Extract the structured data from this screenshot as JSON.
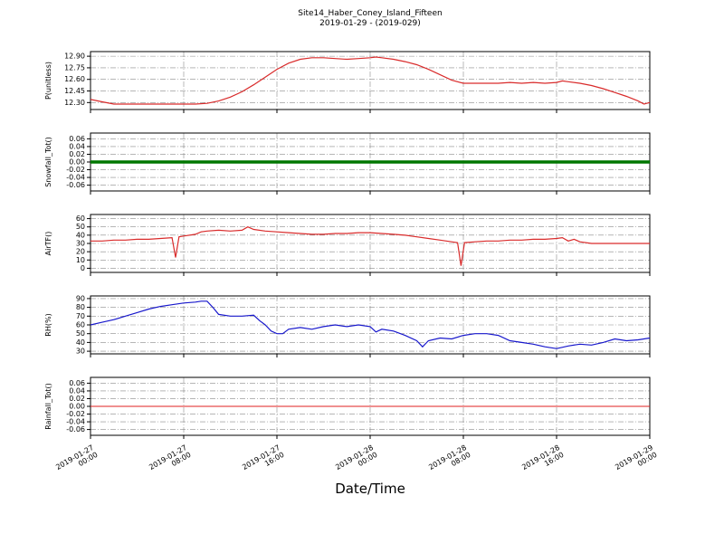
{
  "chart_data": {
    "type": "line",
    "title": "Site14_Haber_Coney_Island_Fifteen",
    "subtitle": "2019-01-29 - (2019-029)",
    "xlabel": "Date/Time",
    "x_unit": "hours since 2019-01-27 00:00",
    "xlim": [
      0,
      48
    ],
    "grid": true,
    "grid_style": "dash-dot",
    "legend": "none",
    "xticks": [
      0,
      8,
      16,
      24,
      32,
      40,
      48
    ],
    "xtick_labels": [
      [
        "2019-01-27",
        "00:00"
      ],
      [
        "2019-01-27",
        "08:00"
      ],
      [
        "2019-01-27",
        "16:00"
      ],
      [
        "2019-01-28",
        "00:00"
      ],
      [
        "2019-01-28",
        "08:00"
      ],
      [
        "2019-01-28",
        "16:00"
      ],
      [
        "2019-01-29",
        "00:00"
      ]
    ],
    "panels": [
      {
        "ylabel": "P(unitless)",
        "color": "#d92b2b",
        "line_width": 1.2,
        "ylim": [
          12.21,
          12.96
        ],
        "yticks": [
          12.3,
          12.45,
          12.6,
          12.75,
          12.9
        ],
        "ytick_labels": [
          "12.30",
          "12.45",
          "12.60",
          "12.75",
          "12.90"
        ],
        "x": [
          0,
          1,
          2,
          3,
          6,
          9,
          10,
          11,
          12,
          13,
          14,
          15,
          16,
          17,
          18,
          19,
          20,
          21,
          22,
          23,
          24,
          24.5,
          25,
          26,
          27,
          28,
          29,
          30,
          31,
          32,
          33,
          34,
          35,
          36,
          37,
          38,
          39,
          40,
          40.5,
          41,
          42,
          43,
          44,
          45,
          46,
          47,
          47.5,
          48
        ],
        "y": [
          12.34,
          12.31,
          12.28,
          12.28,
          12.28,
          12.28,
          12.29,
          12.32,
          12.37,
          12.44,
          12.53,
          12.63,
          12.73,
          12.81,
          12.86,
          12.88,
          12.88,
          12.87,
          12.86,
          12.87,
          12.88,
          12.89,
          12.88,
          12.86,
          12.83,
          12.79,
          12.73,
          12.66,
          12.59,
          12.55,
          12.55,
          12.55,
          12.55,
          12.56,
          12.55,
          12.56,
          12.55,
          12.56,
          12.58,
          12.57,
          12.55,
          12.52,
          12.48,
          12.43,
          12.38,
          12.32,
          12.28,
          12.3
        ]
      },
      {
        "ylabel": "Snowfall_Tot()",
        "color": "#007700",
        "line_width": 3.5,
        "ylim": [
          -0.075,
          0.075
        ],
        "yticks": [
          -0.06,
          -0.04,
          -0.02,
          0.0,
          0.02,
          0.04,
          0.06
        ],
        "ytick_labels": [
          "-0.06",
          "-0.04",
          "-0.02",
          "0.00",
          "0.02",
          "0.04",
          "0.06"
        ],
        "x": [
          0,
          48
        ],
        "y": [
          0.0,
          0.0
        ]
      },
      {
        "ylabel": "AirTF()",
        "color": "#d92b2b",
        "line_width": 1.2,
        "ylim": [
          -5,
          65
        ],
        "yticks": [
          0,
          10,
          20,
          30,
          40,
          50,
          60
        ],
        "ytick_labels": [
          "0",
          "10",
          "20",
          "30",
          "40",
          "50",
          "60"
        ],
        "x": [
          0,
          1,
          2,
          3,
          4,
          5,
          6,
          7,
          7.3,
          7.6,
          8,
          9,
          9.5,
          10,
          11,
          12,
          13,
          13.5,
          14,
          15,
          16,
          17,
          18,
          19,
          20,
          21,
          22,
          23,
          24,
          25,
          26,
          27,
          28,
          29,
          30,
          31,
          31.5,
          31.8,
          32.1,
          33,
          34,
          35,
          36,
          37,
          38,
          39,
          40,
          40.5,
          41,
          41.5,
          42,
          43,
          44,
          45,
          46,
          47,
          48
        ],
        "y": [
          33,
          33,
          34,
          34,
          35,
          35,
          36,
          37,
          13,
          38,
          39,
          41,
          44,
          45,
          46,
          45,
          46,
          50,
          47,
          45,
          44,
          43,
          42,
          41,
          41,
          42,
          42,
          43,
          43,
          42,
          41,
          40,
          38,
          36,
          34,
          32,
          31,
          3,
          31,
          32,
          33,
          33,
          34,
          34,
          35,
          35,
          36,
          37,
          33,
          35,
          32,
          30,
          30,
          30,
          30,
          30,
          30
        ]
      },
      {
        "ylabel": "RH(%)",
        "color": "#1818cc",
        "line_width": 1.2,
        "ylim": [
          27,
          93
        ],
        "yticks": [
          30,
          40,
          50,
          60,
          70,
          80,
          90
        ],
        "ytick_labels": [
          "30",
          "40",
          "50",
          "60",
          "70",
          "80",
          "90"
        ],
        "x": [
          0,
          1,
          2,
          3,
          4,
          5,
          6,
          7,
          8,
          9,
          9.5,
          10,
          10.5,
          11,
          12,
          13,
          14,
          14.5,
          15,
          15.5,
          16,
          16.5,
          17,
          18,
          19,
          20,
          21,
          22,
          23,
          24,
          24.5,
          25,
          26,
          27,
          28,
          28.5,
          29,
          30,
          31,
          32,
          33,
          34,
          35,
          36,
          37,
          38,
          39,
          40,
          41,
          42,
          43,
          44,
          45,
          46,
          47,
          48
        ],
        "y": [
          60,
          63,
          66,
          70,
          74,
          78,
          81,
          83,
          85,
          86,
          87,
          87,
          80,
          72,
          70,
          70,
          71,
          65,
          60,
          53,
          50,
          50,
          55,
          57,
          55,
          58,
          60,
          58,
          60,
          58,
          52,
          55,
          53,
          48,
          42,
          35,
          42,
          45,
          44,
          48,
          50,
          50,
          48,
          42,
          40,
          38,
          35,
          33,
          36,
          38,
          37,
          40,
          44,
          42,
          43,
          45
        ]
      },
      {
        "ylabel": "Rainfall_Tot()",
        "color": "#e02020",
        "line_width": 1,
        "ylim": [
          -0.075,
          0.075
        ],
        "yticks": [
          -0.06,
          -0.04,
          -0.02,
          0.0,
          0.02,
          0.04,
          0.06
        ],
        "ytick_labels": [
          "-0.06",
          "-0.04",
          "-0.02",
          "0.00",
          "0.02",
          "0.04",
          "0.06"
        ],
        "x": [
          0,
          48
        ],
        "y": [
          0.0,
          0.0
        ]
      }
    ]
  }
}
